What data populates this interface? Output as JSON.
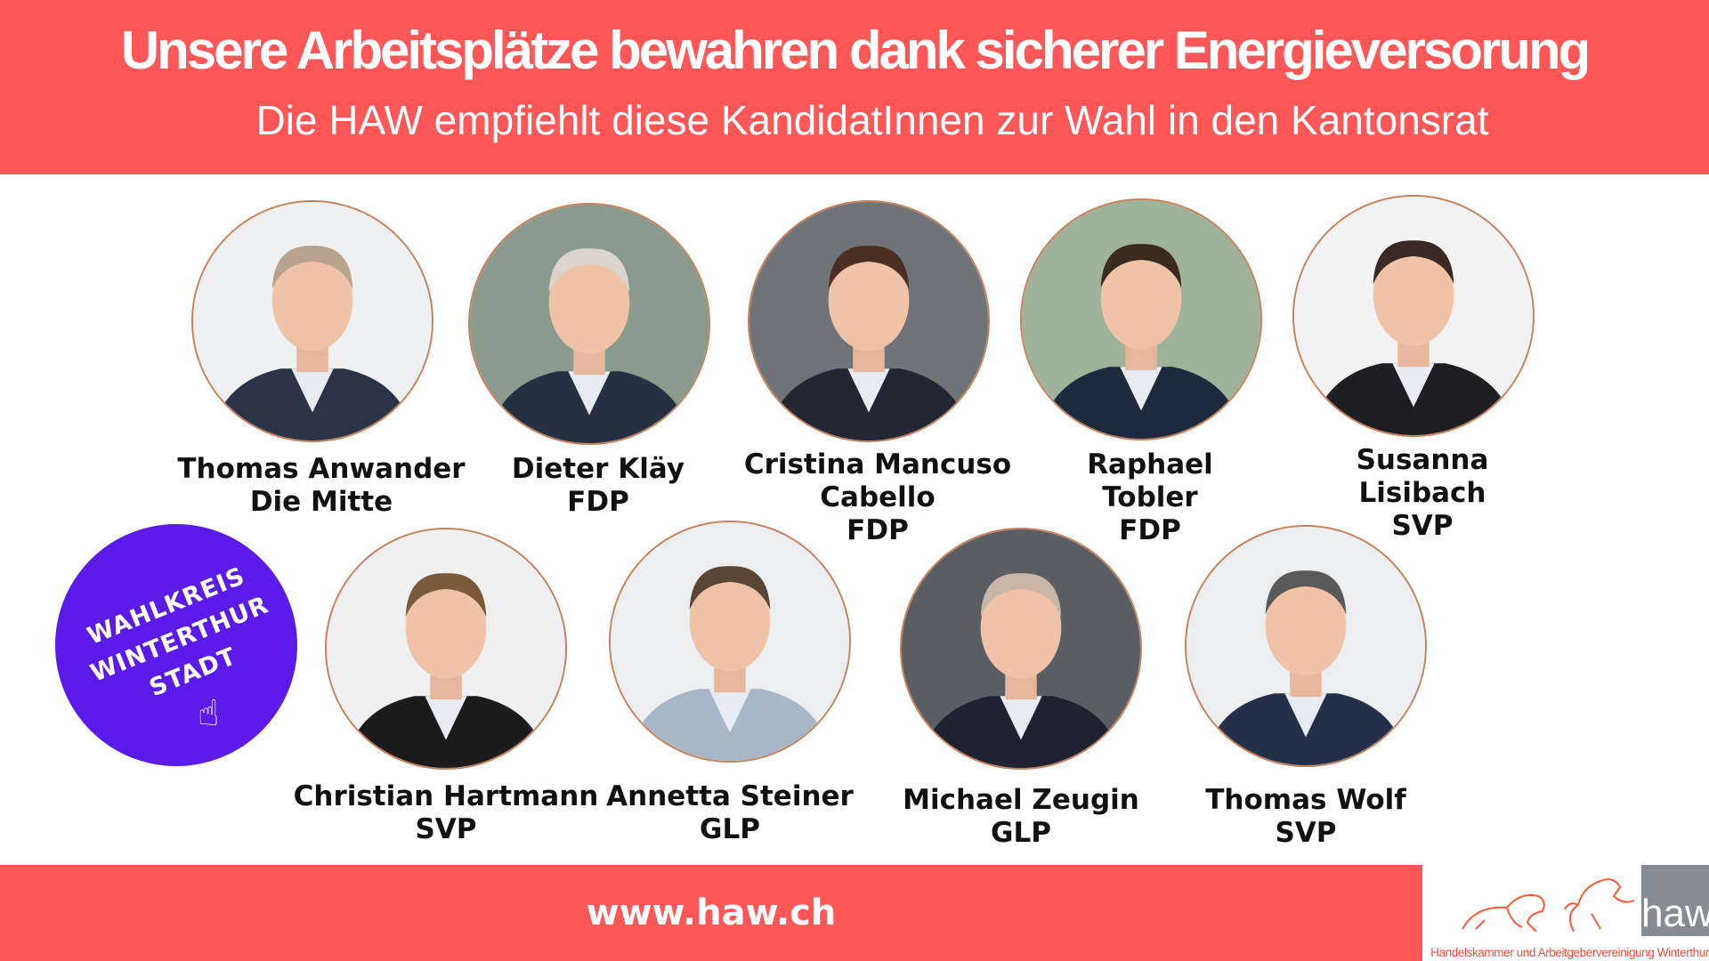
{
  "header": {
    "title": "Unsere Arbeitsplätze bewahren dank sicherer Energieversorung",
    "subtitle": "Die HAW empfiehlt diese KandidatInnen zur Wahl in den Kantonsrat"
  },
  "candidates": [
    {
      "name": "Thomas Anwander",
      "party": "Die Mitte"
    },
    {
      "name": "Dieter Kläy",
      "party": "FDP"
    },
    {
      "name": "Cristina Mancuso Cabello",
      "name1": "Cristina Mancuso",
      "name2": "Cabello",
      "party": "FDP"
    },
    {
      "name": "Raphael Tobler",
      "name1": "Raphael",
      "name2": "Tobler",
      "party": "FDP"
    },
    {
      "name": "Susanna Lisibach",
      "name1": "Susanna",
      "name2": "Lisibach",
      "party": "SVP"
    },
    {
      "name": "Christian Hartmann",
      "party": "SVP"
    },
    {
      "name": "Annetta Steiner",
      "party": "GLP"
    },
    {
      "name": "Michael Zeugin",
      "party": "GLP"
    },
    {
      "name": "Thomas Wolf",
      "party": "SVP"
    }
  ],
  "badge": {
    "line1": "WAHLKREIS",
    "line2": "WINTERTHUR",
    "line3": "STADT",
    "icon": "pointing-hand-icon",
    "color": "#5a1ae8"
  },
  "footer": {
    "url": "www.haw.ch"
  },
  "logo": {
    "wordmark": "haw",
    "caption": "Handelskammer und Arbeitgebervereinigung Winterthur"
  },
  "colors": {
    "accent": "#ff5757",
    "badge": "#5a1ae8",
    "ring": "#c8815a"
  }
}
